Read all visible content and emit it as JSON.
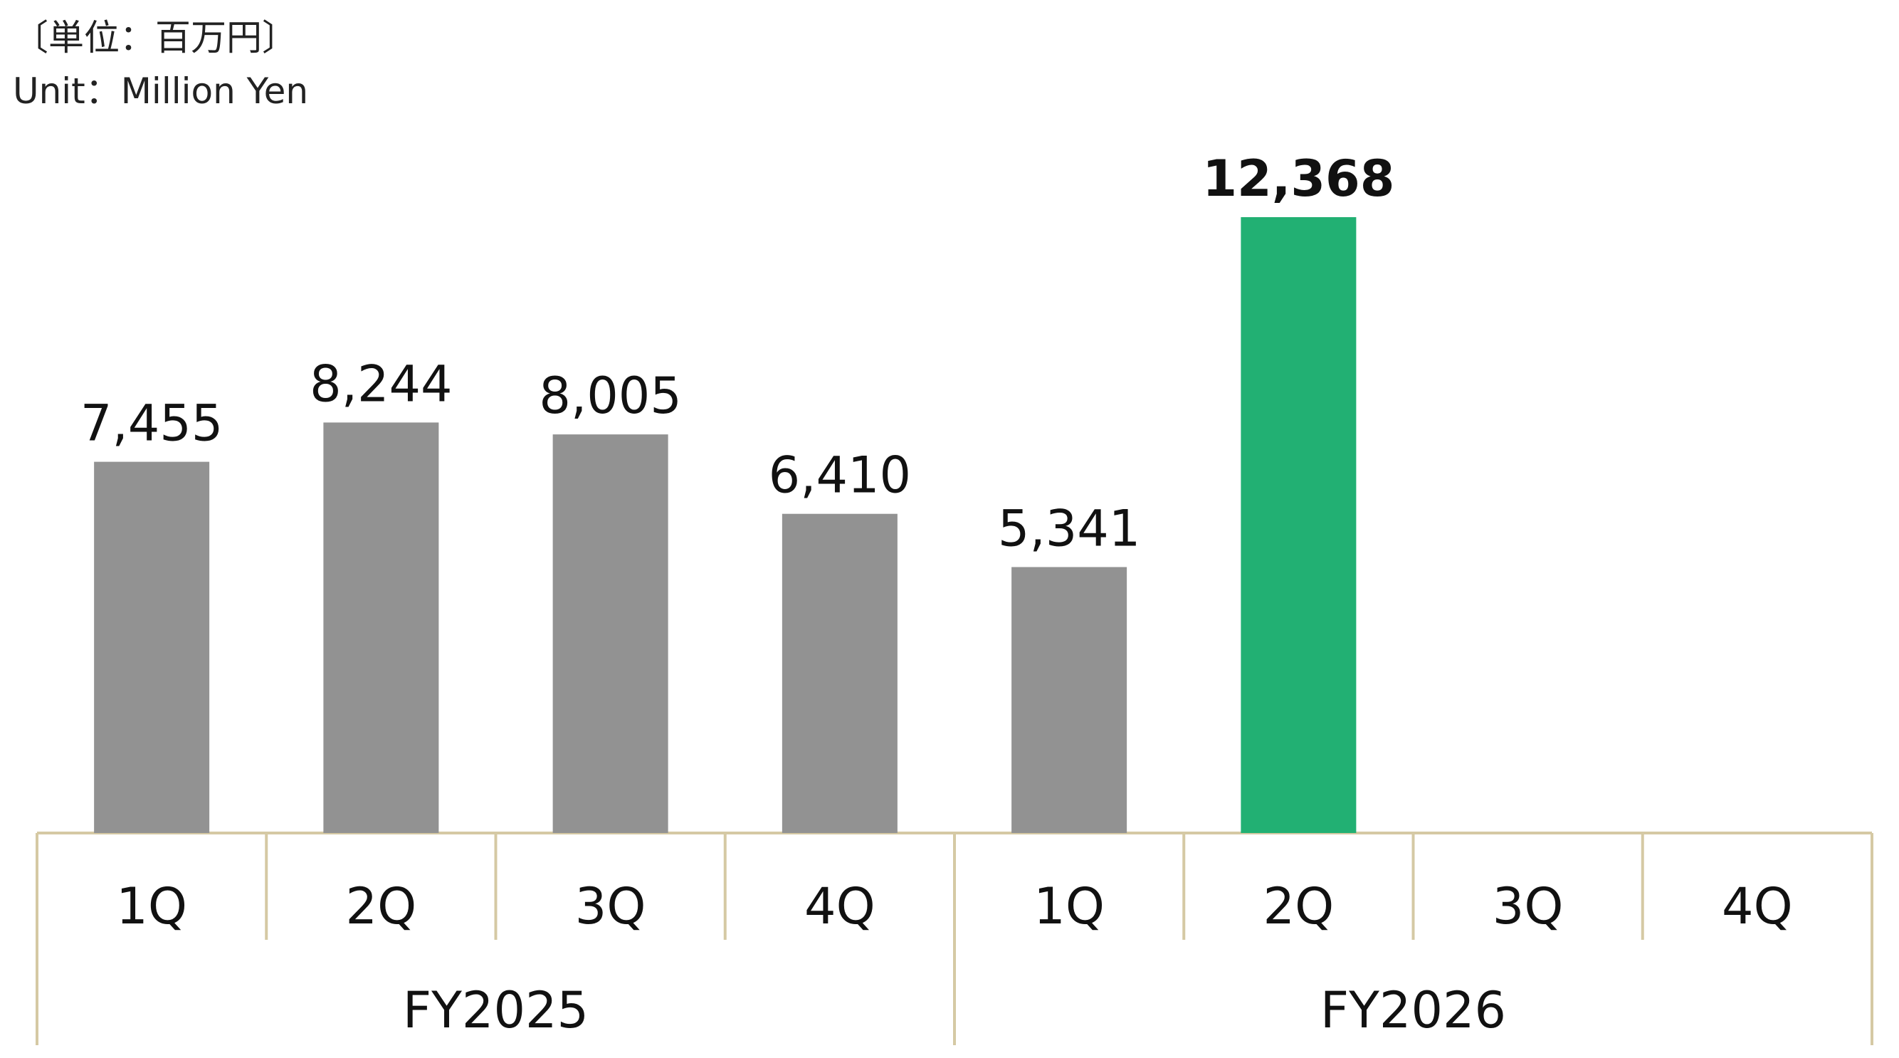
{
  "unit_label_jp": "〔単位：百万円〕",
  "unit_label_en": "Unit：Million Yen",
  "chart_data": {
    "type": "bar",
    "groups": [
      {
        "label": "FY2025",
        "categories": [
          "1Q",
          "2Q",
          "3Q",
          "4Q"
        ],
        "values": [
          7455,
          8244,
          8005,
          6410
        ],
        "value_labels": [
          "7,455",
          "8,244",
          "8,005",
          "6,410"
        ]
      },
      {
        "label": "FY2026",
        "categories": [
          "1Q",
          "2Q",
          "3Q",
          "4Q"
        ],
        "values": [
          5341,
          12368,
          null,
          null
        ],
        "value_labels": [
          "5,341",
          "12,368",
          "",
          ""
        ]
      }
    ],
    "highlight": {
      "group": 1,
      "index": 1
    },
    "ylim": [
      0,
      12368
    ],
    "colors": {
      "bar": "#929292",
      "highlight": "#22b073",
      "axis": "#d5c9a4"
    }
  }
}
